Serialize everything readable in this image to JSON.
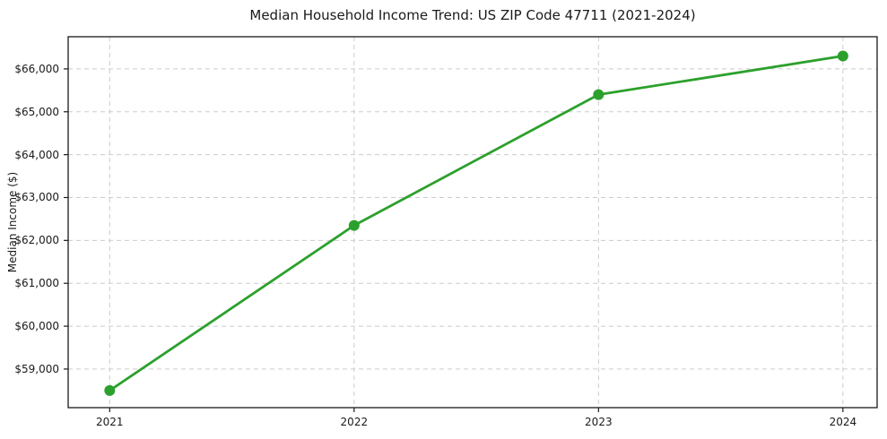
{
  "chart_data": {
    "type": "line",
    "title": "Median Household Income Trend: US ZIP Code 47711 (2021-2024)",
    "ylabel": "Median Income ($)",
    "xlabel": "",
    "x": [
      2021,
      2022,
      2023,
      2024
    ],
    "xtick_labels": [
      "2021",
      "2022",
      "2023",
      "2024"
    ],
    "values": [
      58500,
      62350,
      65400,
      66300
    ],
    "yticks": [
      59000,
      60000,
      61000,
      62000,
      63000,
      64000,
      65000,
      66000
    ],
    "ytick_labels": [
      "$59,000",
      "$60,000",
      "$61,000",
      "$62,000",
      "$63,000",
      "$64,000",
      "$65,000",
      "$66,000"
    ],
    "xlim": [
      2020.83,
      2024.14
    ],
    "ylim": [
      58100,
      66750
    ],
    "grid": true,
    "grid_style": "dashed",
    "legend": "none",
    "line_color": "#2ca02c",
    "marker": "circle",
    "grid_color": "#cccccc",
    "spine_color": "#1a1a1a",
    "tick_color": "#1a1a1a",
    "text_color": "#1a1a1a",
    "background_color": "#ffffff"
  }
}
